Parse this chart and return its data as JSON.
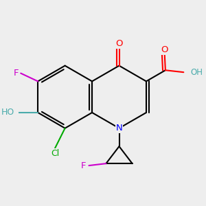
{
  "bg_color": "#eeeeee",
  "bond_color": "#000000",
  "bond_width": 1.5,
  "atom_colors": {
    "N": "#0000ff",
    "O": "#ff0000",
    "F": "#cc00cc",
    "Cl": "#00aa00",
    "OH_teal": "#4aabab",
    "C": "#000000"
  }
}
